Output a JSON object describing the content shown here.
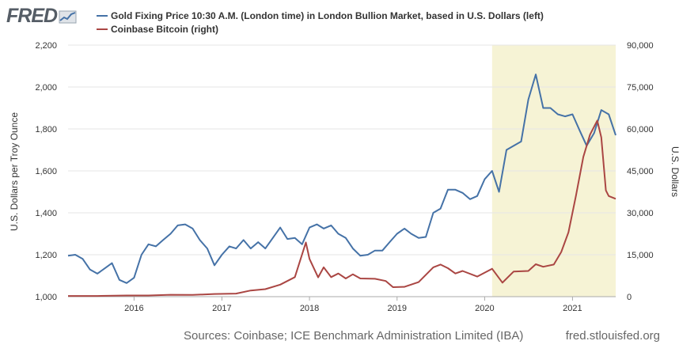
{
  "brand": {
    "logo_text": "FRED"
  },
  "colors": {
    "gold": "#4572a7",
    "bitcoin": "#aa4643",
    "recession": "#f6f3d5",
    "grid": "#e6e6e6"
  },
  "footer": {
    "sources": "Sources: Coinbase; ICE Benchmark Administration Limited (IBA)",
    "site": "fred.stlouisfed.org"
  },
  "chart_data": {
    "type": "line",
    "legend_position": "top-left",
    "grid": true,
    "x_range": [
      "2015-04-01",
      "2021-06-30"
    ],
    "x_ticks": [
      "2016",
      "2017",
      "2018",
      "2019",
      "2020",
      "2021"
    ],
    "y_left": {
      "label": "U.S. Dollars per Troy Ounce",
      "range": [
        1000,
        2200
      ],
      "ticks": [
        "1,000",
        "1,200",
        "1,400",
        "1,600",
        "1,800",
        "2,000",
        "2,200"
      ]
    },
    "y_right": {
      "label": "U.S. Dollars",
      "range": [
        0,
        90000
      ],
      "ticks": [
        "0",
        "15,000",
        "30,000",
        "45,000",
        "60,000",
        "75,000",
        "90,000"
      ]
    },
    "shaded_regions": [
      {
        "start": "2020-02-01",
        "end": "2021-06-30"
      }
    ],
    "series": [
      {
        "name": "Gold Fixing Price 10:30 A.M. (London time) in London Bullion Market, based in U.S. Dollars (left)",
        "axis": "left",
        "points": [
          [
            "2015-04-01",
            1195
          ],
          [
            "2015-05-01",
            1200
          ],
          [
            "2015-06-01",
            1180
          ],
          [
            "2015-07-01",
            1130
          ],
          [
            "2015-08-01",
            1110
          ],
          [
            "2015-09-01",
            1135
          ],
          [
            "2015-10-01",
            1160
          ],
          [
            "2015-11-01",
            1080
          ],
          [
            "2015-12-01",
            1065
          ],
          [
            "2016-01-01",
            1090
          ],
          [
            "2016-02-01",
            1200
          ],
          [
            "2016-03-01",
            1250
          ],
          [
            "2016-04-01",
            1240
          ],
          [
            "2016-05-01",
            1270
          ],
          [
            "2016-06-01",
            1300
          ],
          [
            "2016-07-01",
            1340
          ],
          [
            "2016-08-01",
            1345
          ],
          [
            "2016-09-01",
            1325
          ],
          [
            "2016-10-01",
            1270
          ],
          [
            "2016-11-01",
            1230
          ],
          [
            "2016-12-01",
            1150
          ],
          [
            "2017-01-01",
            1200
          ],
          [
            "2017-02-01",
            1240
          ],
          [
            "2017-03-01",
            1230
          ],
          [
            "2017-04-01",
            1270
          ],
          [
            "2017-05-01",
            1230
          ],
          [
            "2017-06-01",
            1260
          ],
          [
            "2017-07-01",
            1230
          ],
          [
            "2017-08-01",
            1280
          ],
          [
            "2017-09-01",
            1330
          ],
          [
            "2017-10-01",
            1275
          ],
          [
            "2017-11-01",
            1280
          ],
          [
            "2017-12-01",
            1250
          ],
          [
            "2018-01-01",
            1330
          ],
          [
            "2018-02-01",
            1345
          ],
          [
            "2018-03-01",
            1325
          ],
          [
            "2018-04-01",
            1340
          ],
          [
            "2018-05-01",
            1300
          ],
          [
            "2018-06-01",
            1280
          ],
          [
            "2018-07-01",
            1230
          ],
          [
            "2018-08-01",
            1195
          ],
          [
            "2018-09-01",
            1200
          ],
          [
            "2018-10-01",
            1220
          ],
          [
            "2018-11-01",
            1220
          ],
          [
            "2018-12-01",
            1260
          ],
          [
            "2019-01-01",
            1300
          ],
          [
            "2019-02-01",
            1325
          ],
          [
            "2019-03-01",
            1300
          ],
          [
            "2019-04-01",
            1280
          ],
          [
            "2019-05-01",
            1285
          ],
          [
            "2019-06-01",
            1400
          ],
          [
            "2019-07-01",
            1420
          ],
          [
            "2019-08-01",
            1510
          ],
          [
            "2019-09-01",
            1510
          ],
          [
            "2019-10-01",
            1495
          ],
          [
            "2019-11-01",
            1465
          ],
          [
            "2019-12-01",
            1480
          ],
          [
            "2020-01-01",
            1560
          ],
          [
            "2020-02-01",
            1600
          ],
          [
            "2020-03-01",
            1500
          ],
          [
            "2020-04-01",
            1700
          ],
          [
            "2020-05-01",
            1720
          ],
          [
            "2020-06-01",
            1740
          ],
          [
            "2020-07-01",
            1940
          ],
          [
            "2020-08-01",
            2060
          ],
          [
            "2020-09-01",
            1900
          ],
          [
            "2020-10-01",
            1900
          ],
          [
            "2020-11-01",
            1870
          ],
          [
            "2020-12-01",
            1860
          ],
          [
            "2021-01-01",
            1870
          ],
          [
            "2021-02-01",
            1790
          ],
          [
            "2021-03-01",
            1720
          ],
          [
            "2021-04-01",
            1780
          ],
          [
            "2021-05-01",
            1890
          ],
          [
            "2021-06-01",
            1870
          ],
          [
            "2021-06-30",
            1770
          ]
        ]
      },
      {
        "name": "Coinbase Bitcoin (right)",
        "axis": "right",
        "points": [
          [
            "2015-04-01",
            250
          ],
          [
            "2015-08-01",
            260
          ],
          [
            "2015-12-01",
            420
          ],
          [
            "2016-03-01",
            420
          ],
          [
            "2016-06-01",
            680
          ],
          [
            "2016-09-01",
            610
          ],
          [
            "2016-12-01",
            950
          ],
          [
            "2017-03-01",
            1100
          ],
          [
            "2017-05-01",
            2200
          ],
          [
            "2017-07-01",
            2700
          ],
          [
            "2017-09-01",
            4300
          ],
          [
            "2017-11-01",
            7000
          ],
          [
            "2017-12-17",
            19400
          ],
          [
            "2018-01-01",
            13500
          ],
          [
            "2018-02-06",
            6900
          ],
          [
            "2018-03-01",
            10500
          ],
          [
            "2018-04-01",
            7000
          ],
          [
            "2018-05-01",
            8300
          ],
          [
            "2018-06-01",
            6500
          ],
          [
            "2018-07-01",
            8000
          ],
          [
            "2018-08-01",
            6500
          ],
          [
            "2018-10-01",
            6400
          ],
          [
            "2018-11-15",
            5600
          ],
          [
            "2018-12-15",
            3400
          ],
          [
            "2019-02-01",
            3500
          ],
          [
            "2019-04-01",
            5200
          ],
          [
            "2019-06-01",
            10500
          ],
          [
            "2019-07-01",
            11500
          ],
          [
            "2019-08-01",
            10200
          ],
          [
            "2019-09-01",
            8300
          ],
          [
            "2019-10-01",
            9200
          ],
          [
            "2019-12-01",
            7200
          ],
          [
            "2020-02-01",
            10000
          ],
          [
            "2020-03-15",
            5000
          ],
          [
            "2020-05-01",
            9000
          ],
          [
            "2020-07-01",
            9200
          ],
          [
            "2020-08-01",
            11600
          ],
          [
            "2020-09-01",
            10700
          ],
          [
            "2020-10-15",
            11500
          ],
          [
            "2020-11-15",
            16000
          ],
          [
            "2020-12-15",
            23000
          ],
          [
            "2021-01-15",
            36000
          ],
          [
            "2021-02-15",
            50000
          ],
          [
            "2021-03-15",
            58000
          ],
          [
            "2021-04-14",
            63000
          ],
          [
            "2021-05-01",
            57000
          ],
          [
            "2021-05-20",
            38000
          ],
          [
            "2021-06-01",
            36000
          ],
          [
            "2021-06-30",
            35000
          ]
        ]
      }
    ]
  }
}
